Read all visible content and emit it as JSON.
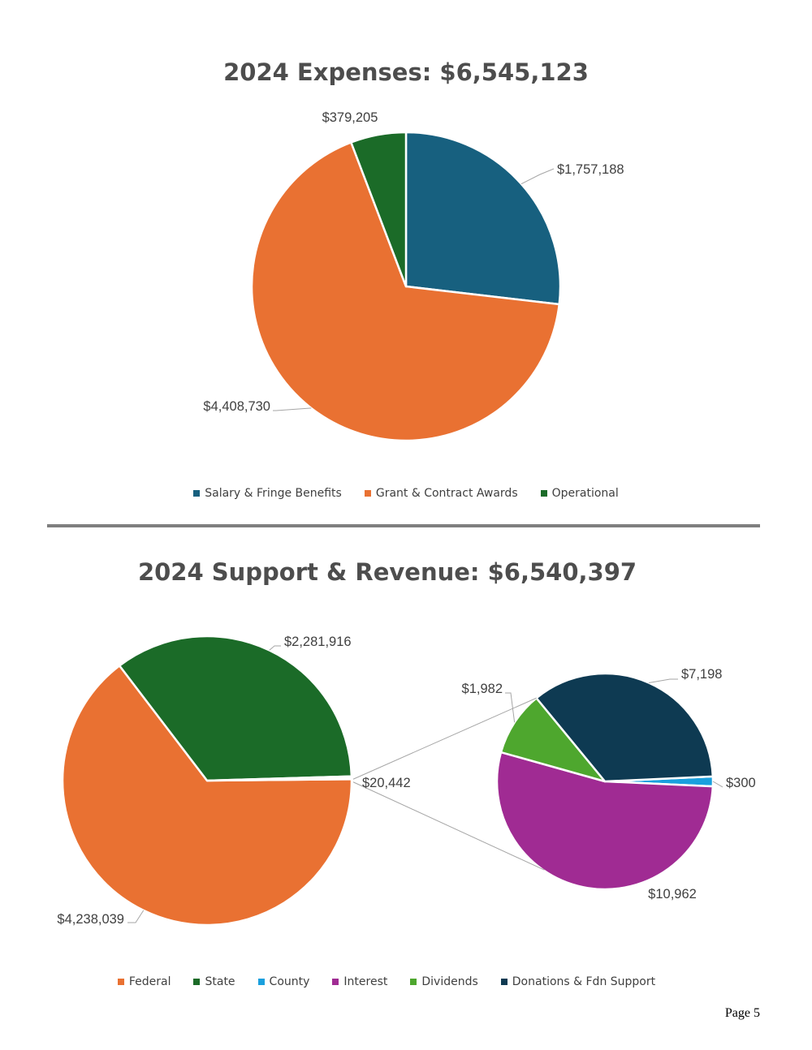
{
  "chart_data": [
    {
      "type": "pie",
      "title": "2024 Expenses: $6,545,123",
      "categories": [
        "Salary & Fringe Benefits",
        "Grant & Contract Awards",
        "Operational"
      ],
      "values": [
        1757188,
        4408730,
        379205
      ],
      "labels": [
        "$1,757,188",
        "$4,408,730",
        "$379,205"
      ],
      "colors": [
        "#17607f",
        "#e97132",
        "#1b6b28"
      ],
      "legend": "bottom"
    },
    {
      "type": "pie",
      "subtype": "pie-of-pie",
      "title": "2024 Support & Revenue: $6,540,397",
      "categories": [
        "Federal",
        "State",
        "County",
        "Interest",
        "Dividends",
        "Donations & Fdn Support"
      ],
      "values": [
        4238039,
        2281916,
        300,
        10962,
        1982,
        7198
      ],
      "colors": [
        "#e97132",
        "#1b6b28",
        "#1aa0de",
        "#a02b93",
        "#4ea72e",
        "#0e3a52"
      ],
      "main_values": [
        4238039,
        2281916,
        20442
      ],
      "main_labels": [
        "$4,238,039",
        "$2,281,916",
        "$20,442"
      ],
      "other_label": "$20,442",
      "secondary_categories": [
        "County",
        "Interest",
        "Dividends",
        "Donations & Fdn Support"
      ],
      "secondary_values": [
        300,
        10962,
        1982,
        7198
      ],
      "secondary_labels": [
        "$300",
        "$10,962",
        "$1,982",
        "$7,198"
      ],
      "legend": "bottom"
    }
  ],
  "page": {
    "number_label": "Page 5"
  }
}
